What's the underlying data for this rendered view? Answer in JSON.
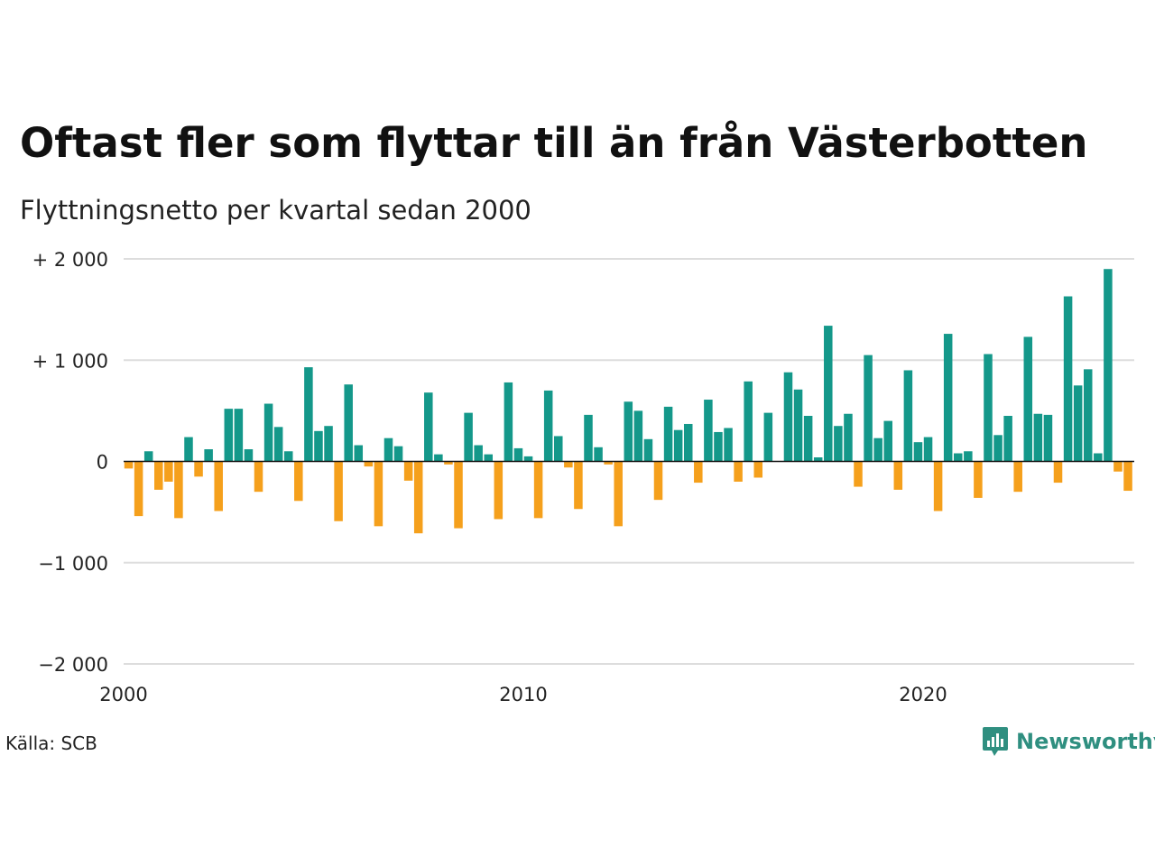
{
  "title": "Oftast fler som flyttar till än från Västerbotten",
  "subtitle": "Flyttningsnetto per kvartal sedan 2000",
  "source": "Källa: SCB",
  "logo_text": "Newsworthy",
  "colors": {
    "positive": "#14988a",
    "negative": "#f5a01c",
    "grid": "#dddddd",
    "logo": "#2f8f80"
  },
  "chart_data": {
    "type": "bar",
    "title": "Oftast fler som flyttar till än från Västerbotten",
    "subtitle": "Flyttningsnetto per kvartal sedan 2000",
    "xlabel": "",
    "ylabel": "",
    "ylim": [
      -2000,
      2000
    ],
    "yticks": [
      2000,
      1000,
      0,
      -1000,
      -2000
    ],
    "ytick_labels": [
      "+ 2 000",
      "+ 1 000",
      "0",
      "−1 000",
      "−2 000"
    ],
    "xticks": [
      2000,
      2010,
      2020
    ],
    "xtick_labels": [
      "2000",
      "2010",
      "2020"
    ],
    "x_start": "2000-Q1",
    "frequency": "quarterly",
    "grid": true,
    "values": [
      -70,
      -540,
      100,
      -280,
      -200,
      -560,
      240,
      -150,
      120,
      -490,
      520,
      520,
      120,
      -300,
      570,
      340,
      100,
      -390,
      930,
      300,
      350,
      -590,
      760,
      160,
      -50,
      -640,
      230,
      150,
      -190,
      -710,
      680,
      70,
      -30,
      -660,
      480,
      160,
      70,
      -570,
      780,
      130,
      50,
      -560,
      700,
      250,
      -60,
      -470,
      460,
      140,
      -30,
      -640,
      590,
      500,
      220,
      -380,
      540,
      310,
      370,
      -210,
      610,
      290,
      330,
      -200,
      790,
      -160,
      480,
      0,
      880,
      710,
      450,
      40,
      1340,
      350,
      470,
      -250,
      1050,
      230,
      400,
      -280,
      900,
      190,
      240,
      -490,
      1260,
      80,
      100,
      -360,
      1060,
      260,
      450,
      -300,
      1230,
      470,
      460,
      -210,
      1630,
      750,
      910,
      80,
      1900,
      -100,
      -290
    ]
  }
}
